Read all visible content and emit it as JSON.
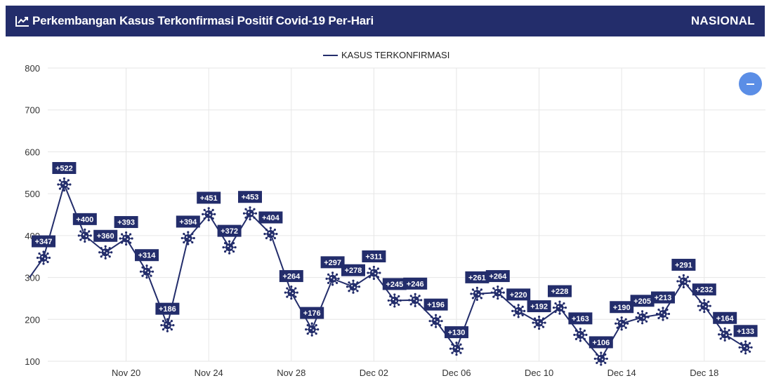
{
  "header": {
    "title": "Perkembangan Kasus Terkonfirmasi Positif Covid-19 Per-Hari",
    "region": "NASIONAL",
    "bg_color": "#232d6b",
    "icon": "line-chart-icon"
  },
  "toggle_button": {
    "icon": "minus-icon",
    "color": "#5b8ee6"
  },
  "chart_data": {
    "type": "line",
    "x": [
      "Nov 16",
      "Nov 17",
      "Nov 18",
      "Nov 19",
      "Nov 20",
      "Nov 21",
      "Nov 22",
      "Nov 23",
      "Nov 24",
      "Nov 25",
      "Nov 26",
      "Nov 27",
      "Nov 28",
      "Nov 29",
      "Nov 30",
      "Dec 01",
      "Dec 02",
      "Dec 03",
      "Dec 04",
      "Dec 05",
      "Dec 06",
      "Dec 07",
      "Dec 08",
      "Dec 09",
      "Dec 10",
      "Dec 11",
      "Dec 12",
      "Dec 13",
      "Dec 14",
      "Dec 15",
      "Dec 16",
      "Dec 17",
      "Dec 18",
      "Dec 19",
      "Dec 20"
    ],
    "x_ticks": [
      "Nov 20",
      "Nov 24",
      "Nov 28",
      "Dec 02",
      "Dec 06",
      "Dec 10",
      "Dec 14",
      "Dec 18"
    ],
    "series": [
      {
        "name": "KASUS TERKONFIRMASI",
        "color": "#232d6b",
        "values": [
          347,
          522,
          400,
          360,
          393,
          314,
          186,
          394,
          451,
          372,
          453,
          404,
          264,
          176,
          297,
          278,
          311,
          245,
          246,
          196,
          130,
          261,
          264,
          220,
          192,
          228,
          163,
          106,
          190,
          205,
          213,
          291,
          232,
          164,
          133
        ],
        "labels": [
          "+347",
          "+522",
          "+400",
          "+360",
          "+393",
          "+314",
          "+186",
          "+394",
          "+451",
          "+372",
          "+453",
          "+404",
          "+264",
          "+176",
          "+297",
          "+278",
          "+311",
          "+245",
          "+246",
          "+196",
          "+130",
          "+261",
          "+264",
          "+220",
          "+192",
          "+228",
          "+163",
          "+106",
          "+190",
          "+205",
          "+213",
          "+291",
          "+232",
          "+164",
          "+133"
        ]
      }
    ],
    "ylim": [
      100,
      800
    ],
    "y_ticks": [
      100,
      200,
      300,
      400,
      500,
      600,
      700,
      800
    ],
    "grid": true,
    "legend_position": "top-center",
    "marker": "virus-icon"
  }
}
